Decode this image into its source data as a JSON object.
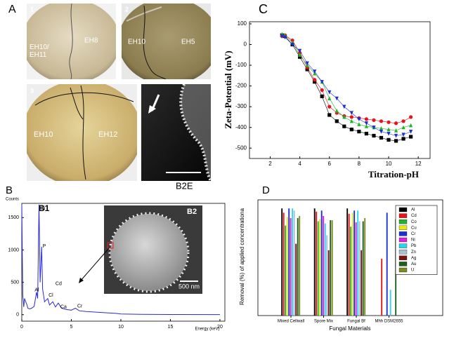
{
  "panel_a": {
    "label": "A",
    "dish_1": {
      "number": "1",
      "left": "EH10/ EH11",
      "right": "EH8"
    },
    "dish_2": {
      "number": "2",
      "left": "EH10",
      "right": "EH5"
    },
    "dish_3": {
      "number": "3",
      "left": "EH10",
      "right": "EH12"
    }
  },
  "panel_b": {
    "label": "B",
    "floating_label": "B2E",
    "inset_label": "B2",
    "scale_bar": "500 nm"
  },
  "chart_data": [
    {
      "type": "line",
      "panel": "C",
      "xlabel": "Titration-pH",
      "ylabel": "Zeta-Potential (mV)",
      "xlim": [
        0.6,
        12.8
      ],
      "ylim": [
        -550,
        110
      ],
      "xticks": [
        2,
        4,
        6,
        8,
        10,
        12
      ],
      "yticks": [
        100,
        0,
        -100,
        -200,
        -300,
        -400,
        -500
      ],
      "x": [
        2.8,
        3,
        3.5,
        4,
        4.5,
        5,
        5.5,
        6,
        6.5,
        7,
        7.5,
        8,
        8.5,
        9,
        9.5,
        10,
        10.5,
        11,
        11.5
      ],
      "series": [
        {
          "color": "#000000",
          "marker": "square",
          "values": [
            45,
            40,
            0,
            -60,
            -120,
            -180,
            -250,
            -340,
            -370,
            -395,
            -410,
            -420,
            -430,
            -440,
            -450,
            -460,
            -465,
            -455,
            -445
          ]
        },
        {
          "color": "#e8141c",
          "marker": "circle",
          "values": [
            40,
            45,
            20,
            -40,
            -110,
            -170,
            -220,
            -300,
            -330,
            -345,
            -350,
            -355,
            -360,
            -365,
            -370,
            -375,
            -380,
            -370,
            -350
          ]
        },
        {
          "color": "#1fb52a",
          "marker": "triangle",
          "values": [
            50,
            45,
            10,
            -50,
            -100,
            -140,
            -180,
            -260,
            -320,
            -350,
            -370,
            -385,
            -395,
            -400,
            -405,
            -410,
            -415,
            -400,
            -390
          ]
        },
        {
          "color": "#1c2fd0",
          "marker": "triangle-down",
          "values": [
            40,
            35,
            0,
            -30,
            -90,
            -130,
            -180,
            -230,
            -260,
            -300,
            -330,
            -360,
            -380,
            -400,
            -420,
            -430,
            -440,
            -435,
            -420
          ]
        }
      ]
    },
    {
      "type": "bar",
      "panel": "D",
      "xlabel": "Fungal Materials",
      "ylabel": "Removal (%) of applied concentrationa",
      "ylim": [
        0,
        108
      ],
      "categories": [
        "Mixed Cellwall",
        "Spore Mix",
        "Fungal Bf",
        "Mhh DSM2655"
      ],
      "series": [
        {
          "name": "Al",
          "color": "#000000",
          "values": [
            100,
            100,
            100,
            null
          ]
        },
        {
          "name": "Cd",
          "color": "#e8141c",
          "values": [
            96,
            97,
            95,
            53
          ]
        },
        {
          "name": "Co",
          "color": "#1fb52a",
          "values": [
            84,
            88,
            83,
            null
          ]
        },
        {
          "name": "Cu",
          "color": "#e6e619",
          "values": [
            92,
            90,
            96,
            null
          ]
        },
        {
          "name": "Cr",
          "color": "#1c2fd0",
          "values": [
            100,
            98,
            98,
            96
          ]
        },
        {
          "name": "Ni",
          "color": "#e020e0",
          "values": [
            91,
            93,
            87,
            null
          ]
        },
        {
          "name": "Pb",
          "color": "#2ad4f0",
          "values": [
            100,
            86,
            98,
            24
          ]
        },
        {
          "name": "Zn",
          "color": "#a9bfd6",
          "values": [
            98,
            75,
            88,
            null
          ]
        },
        {
          "name": "Ag",
          "color": "#7a1010",
          "values": [
            67,
            61,
            61,
            null
          ]
        },
        {
          "name": "Au",
          "color": "#1f5e1f",
          "values": [
            91,
            89,
            88,
            90
          ]
        },
        {
          "name": "U",
          "color": "#7c8a22",
          "values": [
            93,
            89,
            91,
            null
          ]
        }
      ]
    },
    {
      "type": "line",
      "panel": "B1",
      "xlabel": "Energy (keV)",
      "ylabel": "Counts",
      "xlim": [
        0,
        20.5
      ],
      "ylim": [
        -100,
        1720
      ],
      "xticks": [
        0,
        5,
        10,
        15,
        20
      ],
      "yticks": [
        0,
        500,
        1000,
        1500
      ],
      "x": [
        0,
        0.1,
        0.2,
        0.28,
        0.4,
        0.53,
        0.6,
        0.8,
        1.0,
        1.25,
        1.49,
        1.6,
        1.74,
        1.85,
        2.01,
        2.1,
        2.3,
        2.62,
        2.8,
        3.13,
        3.4,
        3.69,
        4,
        4.5,
        5,
        5.41,
        5.8,
        6.5,
        7.5,
        8.5,
        9.5,
        10,
        12,
        15,
        20
      ],
      "series": [
        {
          "color": "#2b2bd6",
          "values": [
            1700,
            300,
            120,
            250,
            200,
            150,
            100,
            90,
            100,
            130,
            350,
            250,
            1700,
            500,
            1050,
            400,
            200,
            250,
            150,
            200,
            120,
            180,
            100,
            80,
            70,
            100,
            60,
            50,
            40,
            30,
            20,
            10,
            5,
            3,
            2
          ]
        }
      ],
      "peaks": [
        {
          "label": "Si",
          "x": 1.9,
          "y": 1640
        },
        {
          "label": "P",
          "x": 2.1,
          "y": 1060
        },
        {
          "label": "Al",
          "x": 1.3,
          "y": 380
        },
        {
          "label": "Cl",
          "x": 2.7,
          "y": 300
        },
        {
          "label": "Cd",
          "x": 3.4,
          "y": 480
        },
        {
          "label": "Ca",
          "x": 3.9,
          "y": 120
        },
        {
          "label": "Cr",
          "x": 5.6,
          "y": 130
        }
      ]
    }
  ]
}
